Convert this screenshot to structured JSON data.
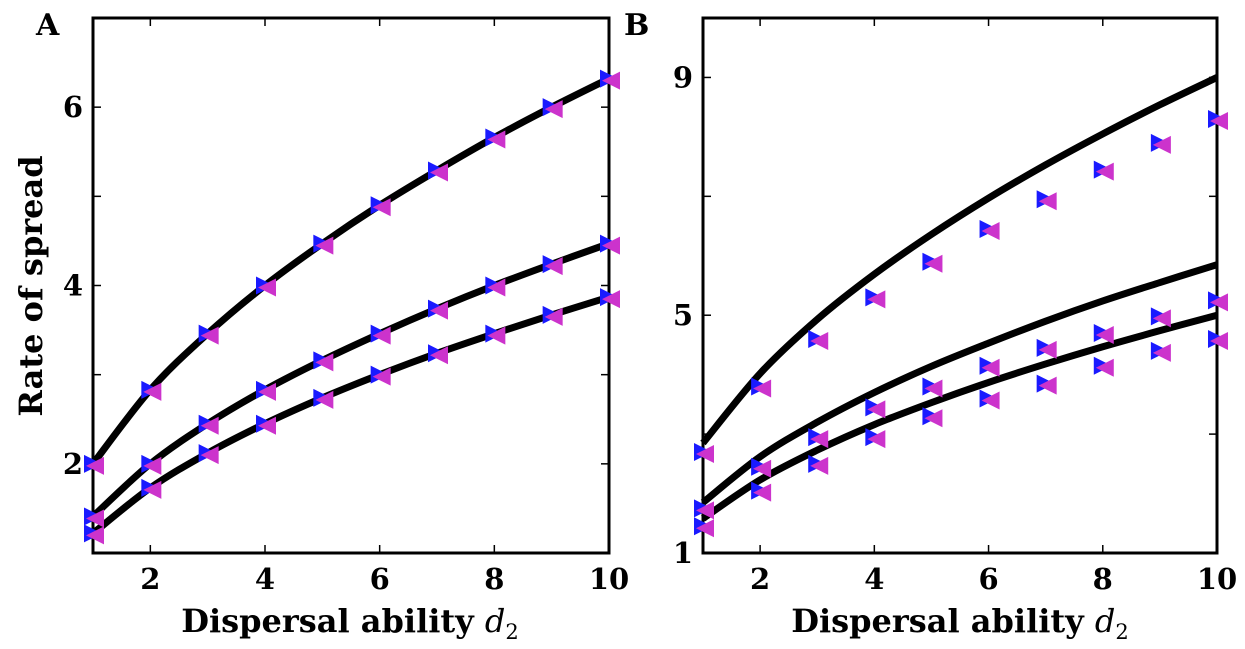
{
  "chart_data": [
    {
      "type": "line",
      "panel_label": "A",
      "title": "",
      "xlabel": "Dispersal ability",
      "xlabel_var": "d",
      "xlabel_sub": "2",
      "ylabel": "Rate of spread",
      "xlim": [
        1,
        10
      ],
      "ylim": [
        1,
        7
      ],
      "xticks": [
        2,
        4,
        6,
        8,
        10
      ],
      "yticks": [
        2,
        4,
        6
      ],
      "ytick_labels": [
        "2",
        "",
        "4",
        "",
        "6"
      ],
      "ytick_positions": [
        2,
        3,
        4,
        5,
        6
      ],
      "x": [
        1,
        2,
        3,
        4,
        5,
        6,
        7,
        8,
        9,
        10
      ],
      "series": [
        {
          "kind": "curve",
          "values": [
            2.0,
            2.83,
            3.46,
            4.0,
            4.47,
            4.9,
            5.29,
            5.66,
            6.0,
            6.32
          ]
        },
        {
          "kind": "curve",
          "values": [
            1.41,
            2.0,
            2.45,
            2.83,
            3.16,
            3.46,
            3.74,
            4.0,
            4.24,
            4.47
          ]
        },
        {
          "kind": "curve",
          "values": [
            1.22,
            1.73,
            2.12,
            2.45,
            2.74,
            3.0,
            3.24,
            3.46,
            3.67,
            3.87
          ]
        }
      ],
      "markers": [
        {
          "shape": "triangle-right",
          "color": "#1a1aff",
          "series_values": [
            [
              2.0,
              2.83,
              3.46,
              4.0,
              4.47,
              4.9,
              5.29,
              5.66,
              6.0,
              6.32
            ],
            [
              1.41,
              2.0,
              2.45,
              2.83,
              3.16,
              3.46,
              3.74,
              4.0,
              4.24,
              4.47
            ],
            [
              1.22,
              1.73,
              2.12,
              2.45,
              2.74,
              3.0,
              3.24,
              3.46,
              3.67,
              3.87
            ]
          ]
        },
        {
          "shape": "triangle-left",
          "color": "#cc33cc",
          "series_values": [
            [
              2.0,
              2.83,
              3.46,
              4.0,
              4.47,
              4.9,
              5.29,
              5.66,
              6.0,
              6.32
            ],
            [
              1.41,
              2.0,
              2.45,
              2.83,
              3.16,
              3.46,
              3.74,
              4.0,
              4.24,
              4.47
            ],
            [
              1.22,
              1.73,
              2.12,
              2.45,
              2.74,
              3.0,
              3.24,
              3.46,
              3.67,
              3.87
            ]
          ]
        }
      ]
    },
    {
      "type": "line",
      "panel_label": "B",
      "title": "",
      "xlabel": "Dispersal ability",
      "xlabel_var": "d",
      "xlabel_sub": "2",
      "ylabel": "",
      "xlim": [
        1,
        10
      ],
      "ylim": [
        1,
        10
      ],
      "xticks": [
        2,
        4,
        6,
        8,
        10
      ],
      "yticks": [
        1,
        5,
        9
      ],
      "ytick_labels": [
        "1",
        "",
        "5",
        "",
        "9"
      ],
      "ytick_positions": [
        1,
        3,
        5,
        7,
        9
      ],
      "x": [
        1,
        2,
        3,
        4,
        5,
        6,
        7,
        8,
        9,
        10
      ],
      "series": [
        {
          "kind": "curve",
          "values": [
            2.85,
            4.02,
            4.93,
            5.69,
            6.36,
            6.97,
            7.53,
            8.05,
            8.54,
            9.0
          ]
        },
        {
          "kind": "curve",
          "values": [
            1.85,
            2.62,
            3.2,
            3.7,
            4.14,
            4.53,
            4.9,
            5.24,
            5.55,
            5.85
          ]
        },
        {
          "kind": "curve",
          "values": [
            1.58,
            2.23,
            2.73,
            3.16,
            3.53,
            3.87,
            4.18,
            4.47,
            4.74,
            5.0
          ]
        }
      ],
      "markers": [
        {
          "shape": "triangle-right",
          "color": "#1a1aff",
          "series_values": [
            [
              2.7,
              3.8,
              4.6,
              5.3,
              5.9,
              6.45,
              6.95,
              7.45,
              7.9,
              8.3
            ],
            [
              1.75,
              2.45,
              2.95,
              3.45,
              3.8,
              4.15,
              4.45,
              4.7,
              4.98,
              5.25
            ],
            [
              1.45,
              2.05,
              2.5,
              2.95,
              3.3,
              3.6,
              3.85,
              4.15,
              4.4,
              4.6
            ]
          ]
        },
        {
          "shape": "triangle-left",
          "color": "#cc33cc",
          "series_values": [
            [
              2.7,
              3.8,
              4.6,
              5.3,
              5.9,
              6.45,
              6.95,
              7.45,
              7.9,
              8.3
            ],
            [
              1.75,
              2.45,
              2.95,
              3.45,
              3.8,
              4.15,
              4.45,
              4.7,
              4.98,
              5.25
            ],
            [
              1.45,
              2.05,
              2.5,
              2.95,
              3.3,
              3.6,
              3.85,
              4.15,
              4.4,
              4.6
            ]
          ]
        }
      ]
    }
  ]
}
